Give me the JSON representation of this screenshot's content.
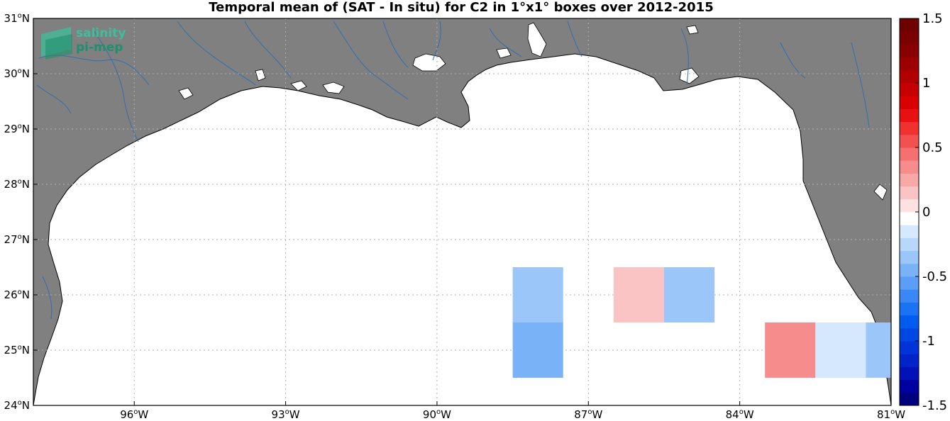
{
  "title": "Temporal mean of (SAT - In situ) for C2 in 1°x1° boxes over 2012-2015",
  "logo": {
    "line1": "salinity",
    "line2": "pi-mep",
    "color1": "#3dbf9a",
    "color2": "#1f8f6e"
  },
  "colors": {
    "land": "#808080",
    "ocean": "#ffffff",
    "rivers": "#2f6fb0",
    "grid": "#b0b0b0"
  },
  "map": {
    "lon_range": [
      -98,
      -81
    ],
    "lat_range": [
      24,
      31
    ],
    "lon_ticks": [
      {
        "value": -96,
        "deg": "96",
        "dir": "W"
      },
      {
        "value": -93,
        "deg": "93",
        "dir": "W"
      },
      {
        "value": -90,
        "deg": "90",
        "dir": "W"
      },
      {
        "value": -87,
        "deg": "87",
        "dir": "W"
      },
      {
        "value": -84,
        "deg": "84",
        "dir": "W"
      },
      {
        "value": -81,
        "deg": "81",
        "dir": "W"
      }
    ],
    "lat_ticks": [
      {
        "value": 24,
        "deg": "24",
        "dir": "N"
      },
      {
        "value": 25,
        "deg": "25",
        "dir": "N"
      },
      {
        "value": 26,
        "deg": "26",
        "dir": "N"
      },
      {
        "value": 27,
        "deg": "27",
        "dir": "N"
      },
      {
        "value": 28,
        "deg": "28",
        "dir": "N"
      },
      {
        "value": 29,
        "deg": "29",
        "dir": "N"
      },
      {
        "value": 30,
        "deg": "30",
        "dir": "N"
      },
      {
        "value": 31,
        "deg": "31",
        "dir": "N"
      }
    ],
    "boxes": [
      {
        "lon": [
          -88.5,
          -87.5
        ],
        "lat": [
          25.5,
          26.5
        ],
        "value": -0.3
      },
      {
        "lon": [
          -88.5,
          -87.5
        ],
        "lat": [
          24.5,
          25.5
        ],
        "value": -0.5
      },
      {
        "lon": [
          -86.5,
          -85.5
        ],
        "lat": [
          25.5,
          26.5
        ],
        "value": 0.15
      },
      {
        "lon": [
          -85.5,
          -84.5
        ],
        "lat": [
          25.5,
          26.5
        ],
        "value": -0.3
      },
      {
        "lon": [
          -83.5,
          -82.5
        ],
        "lat": [
          24.5,
          25.5
        ],
        "value": 0.3
      },
      {
        "lon": [
          -82.5,
          -81.5
        ],
        "lat": [
          24.5,
          25.5
        ],
        "value": -0.15
      },
      {
        "lon": [
          -81.5,
          -81.0
        ],
        "lat": [
          24.5,
          25.5
        ],
        "value": -0.3
      }
    ]
  },
  "colorbar": {
    "range": [
      -1.5,
      1.5
    ],
    "ticks": [
      "-1.5",
      "-1",
      "-0.5",
      "0",
      "0.5",
      "1",
      "1.5"
    ],
    "colors": [
      "#00007f",
      "#0000a0",
      "#0012b8",
      "#0024c8",
      "#0034d8",
      "#0048e4",
      "#005cf0",
      "#1a72f5",
      "#3a88f6",
      "#5a9ef7",
      "#7ab2f8",
      "#9ac6fa",
      "#b8d8fb",
      "#d6e8fd",
      "#ffffff",
      "#fde0e0",
      "#fbc4c4",
      "#f9a8a8",
      "#f78c8c",
      "#f57070",
      "#f35050",
      "#f13030",
      "#e81010",
      "#d80000",
      "#c40000",
      "#b00000",
      "#9c0000",
      "#880000",
      "#7a0000",
      "#6e0000"
    ]
  }
}
